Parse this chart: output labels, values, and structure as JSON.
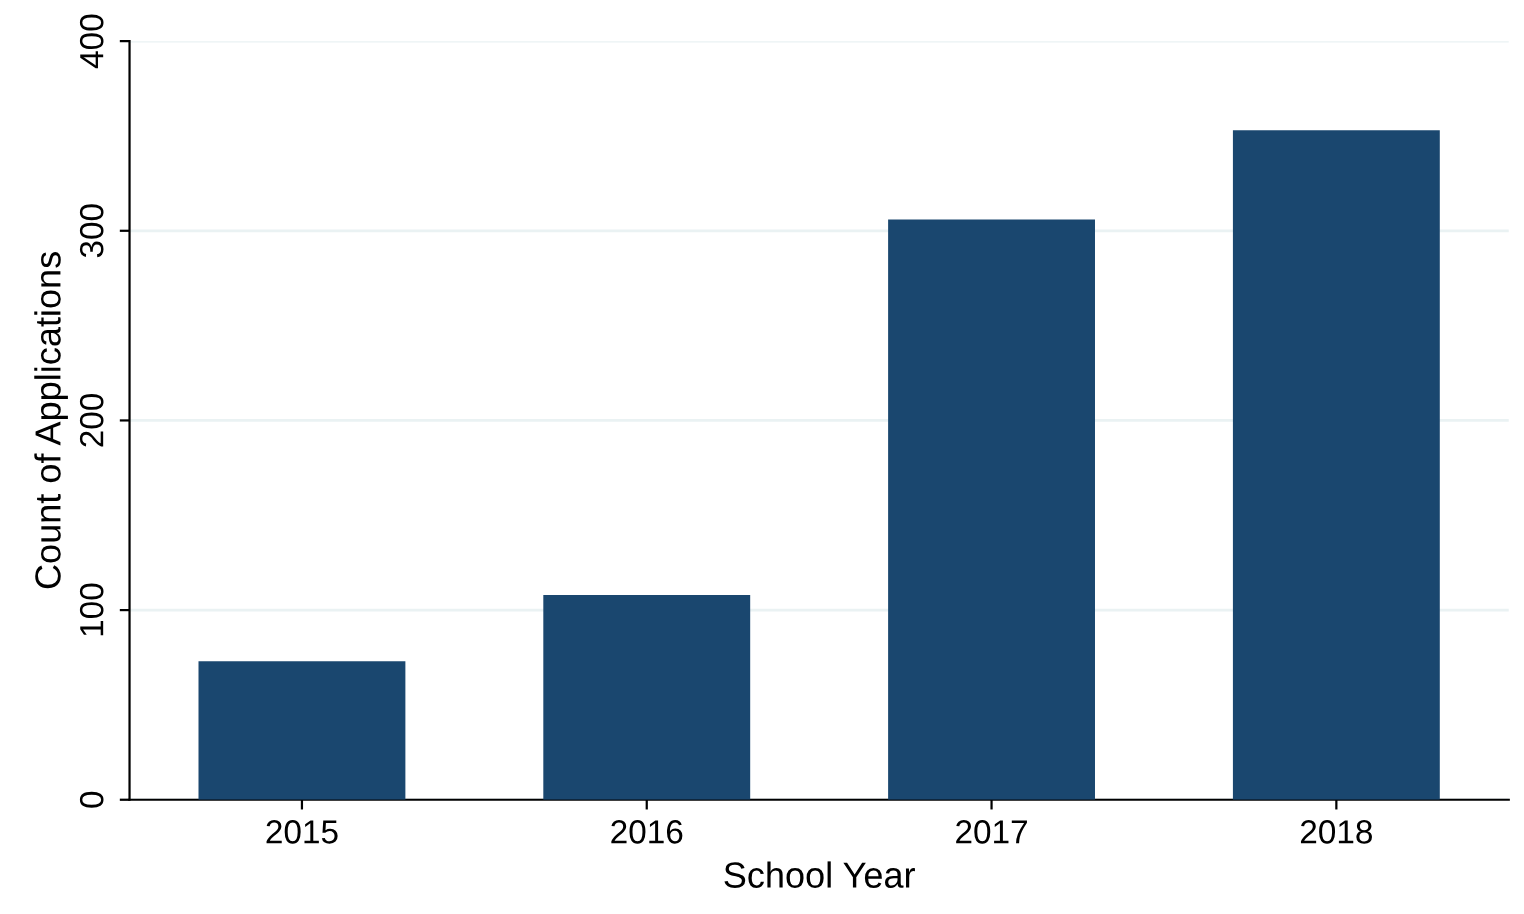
{
  "chart_data": {
    "type": "bar",
    "xlabel": "School Year",
    "ylabel": "Count of Applications",
    "categories": [
      "2015",
      "2016",
      "2017",
      "2018"
    ],
    "values": [
      73,
      108,
      306,
      353
    ],
    "color": "#1a476f",
    "ylim": [
      0,
      400
    ],
    "yticks": [
      0,
      100,
      200,
      300,
      400
    ],
    "grid": "y"
  }
}
